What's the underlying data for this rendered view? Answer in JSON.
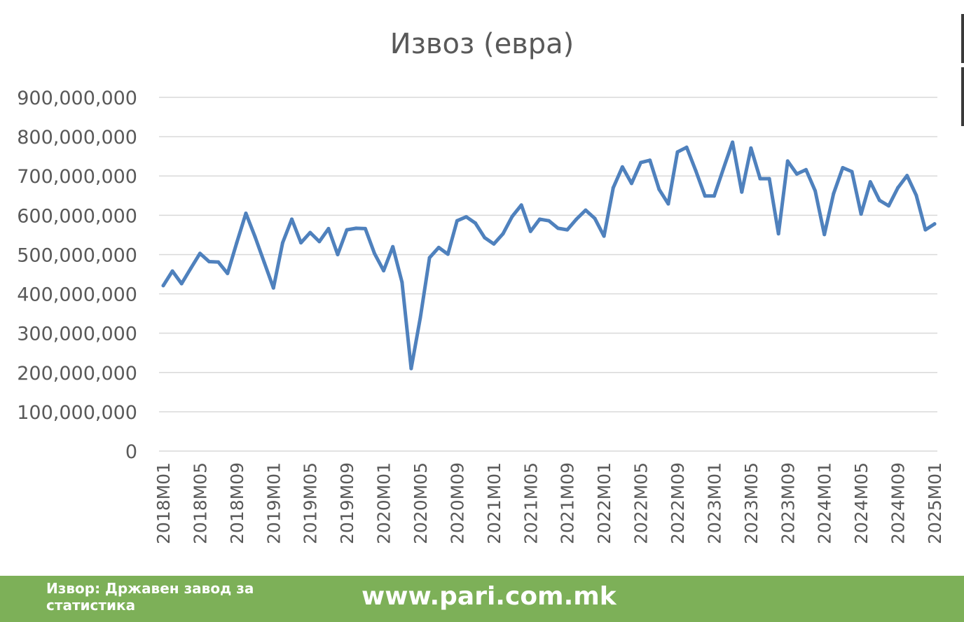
{
  "chart_data": {
    "type": "line",
    "title": "Извоз (евра)",
    "xlabel": "",
    "ylabel": "",
    "ylim": [
      0,
      900000000
    ],
    "y_ticks": [
      "900,000,000",
      "800,000,000",
      "700,000,000",
      "600,000,000",
      "500,000,000",
      "400,000,000",
      "300,000,000",
      "200,000,000",
      "100,000,000",
      "0"
    ],
    "y_tick_values": [
      900000000,
      800000000,
      700000000,
      600000000,
      500000000,
      400000000,
      300000000,
      200000000,
      100000000,
      0
    ],
    "x_tick_labels": [
      "2018M01",
      "2018M05",
      "2018M09",
      "2019M01",
      "2019M05",
      "2019M09",
      "2020M01",
      "2020M05",
      "2020M09",
      "2021M01",
      "2021M05",
      "2021M09",
      "2022M01",
      "2022M05",
      "2022M09",
      "2023M01",
      "2023M05",
      "2023M09",
      "2024M01",
      "2024M05",
      "2024M09",
      "2025M01"
    ],
    "grid": true,
    "legend": "none",
    "color": "#4f81bd",
    "series": [
      {
        "values": [
          421000000,
          458000000,
          426000000,
          465000000,
          503000000,
          482000000,
          481000000,
          452000000,
          530000000,
          605000000,
          545000000,
          480000000,
          415000000,
          530000000,
          590000000,
          530000000,
          556000000,
          533000000,
          566000000,
          500000000,
          563000000,
          567000000,
          566000000,
          503000000,
          459000000,
          520000000,
          430000000,
          210000000,
          340000000,
          492000000,
          518000000,
          501000000,
          586000000,
          596000000,
          580000000,
          543000000,
          527000000,
          553000000,
          597000000,
          626000000,
          559000000,
          590000000,
          586000000,
          567000000,
          563000000,
          590000000,
          613000000,
          592000000,
          547000000,
          670000000,
          723000000,
          681000000,
          734000000,
          740000000,
          666000000,
          629000000,
          761000000,
          773000000,
          713000000,
          649000000,
          649000000,
          718000000,
          786000000,
          659000000,
          771000000,
          693000000,
          693000000,
          553000000,
          738000000,
          705000000,
          716000000,
          662000000,
          551000000,
          655000000,
          721000000,
          711000000,
          603000000,
          685000000,
          638000000,
          624000000,
          670000000,
          701000000,
          651000000,
          563000000,
          578000000
        ]
      }
    ]
  },
  "footer": {
    "source": "Извор: Државен завод за статистика",
    "website": "www.pari.com.mk",
    "color": "#7db058"
  }
}
